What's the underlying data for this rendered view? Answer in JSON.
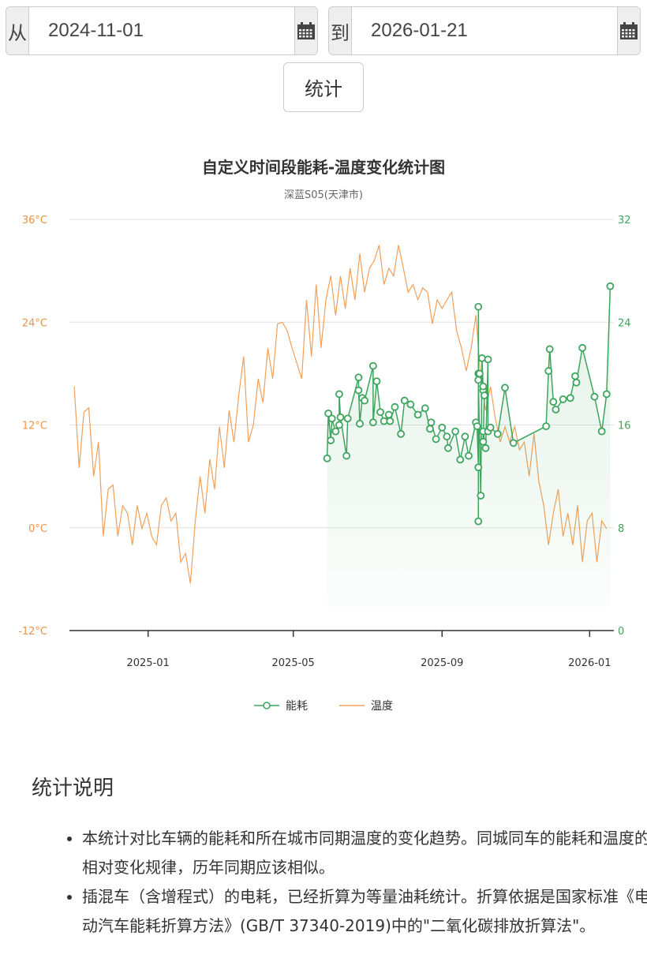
{
  "controls": {
    "from_label": "从",
    "from_value": "2024-11-01",
    "to_label": "到",
    "to_value": "2026-01-21",
    "submit_label": "统计"
  },
  "chart_data": {
    "type": "line",
    "title": "自定义时间段能耗-温度变化统计图",
    "subtitle": "深蓝S05(天津市)",
    "x_unit": "days since 2024-11-01",
    "x_range": [
      -4,
      446
    ],
    "x_ticks": [
      {
        "day": 61,
        "label": "2025-01"
      },
      {
        "day": 181,
        "label": "2025-05"
      },
      {
        "day": 304,
        "label": "2025-09"
      },
      {
        "day": 426,
        "label": "2026-01"
      }
    ],
    "y_left": {
      "name": "温度",
      "range": [
        -12,
        36
      ],
      "ticks": [
        "36°C",
        "24°C",
        "12°C",
        "0°C",
        "-12°C"
      ],
      "tick_values": [
        36,
        24,
        12,
        0,
        -12
      ]
    },
    "y_right": {
      "name": "能耗",
      "range": [
        0,
        32
      ],
      "ticks": [
        "32",
        "24",
        "16",
        "8",
        "0"
      ],
      "tick_values": [
        32,
        24,
        16,
        8,
        0
      ]
    },
    "grid": true,
    "legend_position": "bottom",
    "legend": [
      "能耗",
      "温度"
    ],
    "colors": {
      "energy": "#3da55d",
      "temperature": "#f0a05a",
      "axis_left": "#e8944a",
      "axis_right": "#3da55d"
    },
    "temperature": {
      "start_day": 0,
      "step_days": 4,
      "values": [
        16.5,
        7,
        13.5,
        14,
        6,
        10,
        -1,
        4.5,
        5,
        -1,
        2.6,
        1.7,
        -2,
        2.6,
        -0.1,
        1.7,
        -1,
        -2,
        2.6,
        3.5,
        0.8,
        1.7,
        -4,
        -3,
        -6.5,
        0.8,
        6,
        1.7,
        8,
        4.5,
        11.8,
        7,
        13.7,
        10,
        15.5,
        20,
        10,
        12,
        17.4,
        14.6,
        21,
        17.4,
        23.8,
        24,
        23,
        21,
        19.2,
        17.4,
        26.6,
        20,
        28.4,
        21,
        26.6,
        29.4,
        24.8,
        29.4,
        25.6,
        30.3,
        26.6,
        32,
        27.5,
        30.3,
        31.2,
        33,
        28.4,
        30.3,
        29.4,
        33,
        30.3,
        27.5,
        28.4,
        26.6,
        28,
        27.5,
        23.8,
        26.6,
        25.6,
        26.6,
        27.5,
        23,
        21,
        18.3,
        21,
        24.8,
        17.4,
        13.7,
        16.5,
        12.8,
        10,
        11.8,
        10,
        11.8,
        9.1,
        10,
        6,
        11,
        5.4,
        2.6,
        -2,
        1.7,
        4.5,
        -1,
        1.7,
        -2,
        2.6,
        -4,
        0.8,
        1.7,
        -4,
        0.8,
        -0.1
      ]
    },
    "energy": [
      [
        209,
        13.4
      ],
      [
        210,
        16.9
      ],
      [
        212,
        14.8
      ],
      [
        213,
        16.5
      ],
      [
        216,
        15.5
      ],
      [
        219,
        16.0
      ],
      [
        219,
        18.4
      ],
      [
        220,
        16.6
      ],
      [
        225,
        13.6
      ],
      [
        226,
        16.5
      ],
      [
        235,
        19.7
      ],
      [
        235,
        18.7
      ],
      [
        236,
        16.1
      ],
      [
        238,
        18.1
      ],
      [
        240,
        17.9
      ],
      [
        247,
        20.6
      ],
      [
        247,
        16.2
      ],
      [
        250,
        19.4
      ],
      [
        253,
        17.0
      ],
      [
        256,
        16.3
      ],
      [
        260,
        16.8
      ],
      [
        261,
        16.3
      ],
      [
        265,
        17.4
      ],
      [
        270,
        15.3
      ],
      [
        273,
        17.9
      ],
      [
        278,
        17.6
      ],
      [
        284,
        16.8
      ],
      [
        290,
        17.3
      ],
      [
        294,
        15.7
      ],
      [
        295,
        16.2
      ],
      [
        299,
        14.9
      ],
      [
        304,
        15.8
      ],
      [
        308,
        15.1
      ],
      [
        309,
        14.2
      ],
      [
        315,
        15.5
      ],
      [
        319,
        13.3
      ],
      [
        323,
        15.1
      ],
      [
        326,
        13.6
      ],
      [
        332,
        16.2
      ],
      [
        333,
        15.9
      ],
      [
        334,
        12.7
      ],
      [
        334,
        8.5
      ],
      [
        334,
        25.2
      ],
      [
        334,
        20.0
      ],
      [
        335,
        20.0
      ],
      [
        334,
        19.5
      ],
      [
        336,
        10.5
      ],
      [
        337,
        21.2
      ],
      [
        338,
        18.7
      ],
      [
        338,
        19.0
      ],
      [
        339,
        18.3
      ],
      [
        338,
        14.7
      ],
      [
        338,
        15.5
      ],
      [
        340,
        14.2
      ],
      [
        342,
        21.1
      ],
      [
        342,
        15.5
      ],
      [
        344,
        15.8
      ],
      [
        350,
        15.3
      ],
      [
        356,
        18.9
      ],
      [
        363,
        14.6
      ],
      [
        390,
        15.9
      ],
      [
        392,
        20.2
      ],
      [
        393,
        21.9
      ],
      [
        396,
        17.8
      ],
      [
        398,
        17.2
      ],
      [
        404,
        18.0
      ],
      [
        410,
        18.1
      ],
      [
        414,
        19.8
      ],
      [
        415,
        19.3
      ],
      [
        420,
        22.0
      ],
      [
        430,
        18.2
      ],
      [
        436,
        15.5
      ],
      [
        440,
        18.4
      ],
      [
        443,
        26.8
      ]
    ]
  },
  "notes": {
    "heading": "统计说明",
    "items": [
      "本统计对比车辆的能耗和所在城市同期温度的变化趋势。同城同车的能耗和温度的相对变化规律，历年同期应该相似。",
      "插混车（含增程式）的电耗，已经折算为等量油耗统计。折算依据是国家标准《电动汽车能耗折算方法》(GB/T 37340-2019)中的\"二氧化碳排放折算法\"。"
    ]
  }
}
